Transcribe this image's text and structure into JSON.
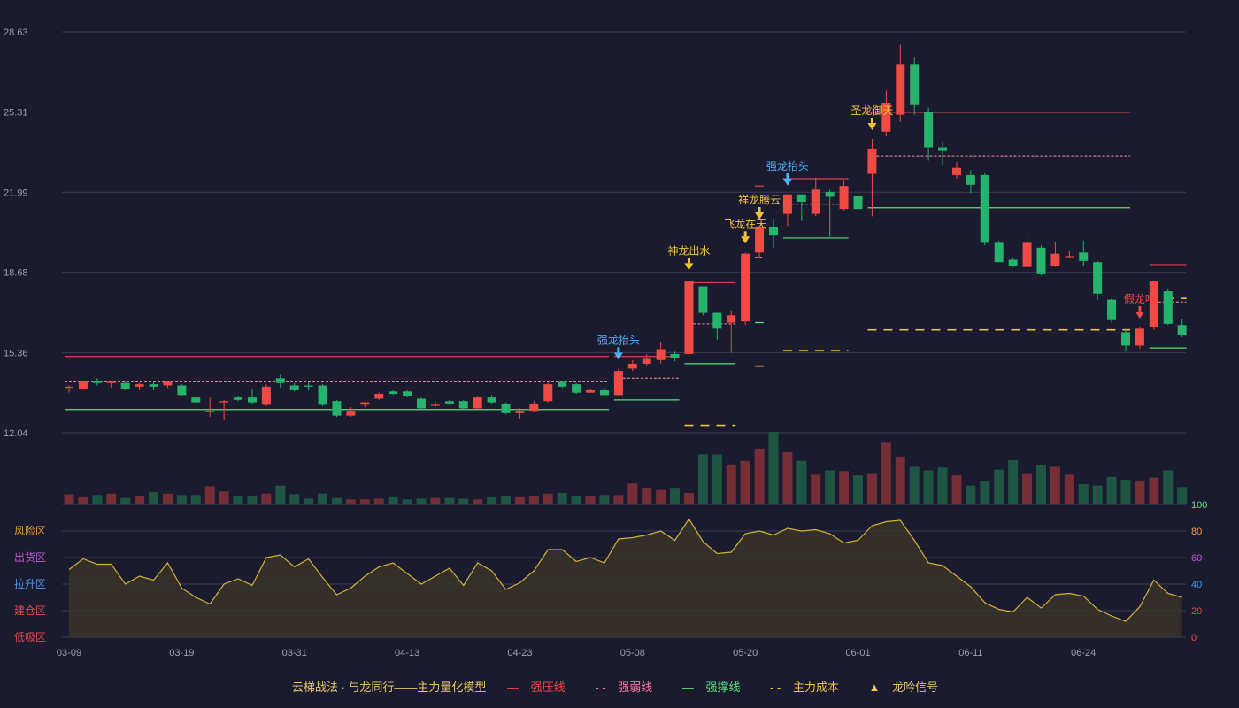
{
  "colors": {
    "up": "#ef4a43",
    "down": "#26b36b",
    "resist": "#d9434a",
    "weak": "#ff8fa8",
    "support": "#58e07a",
    "cost": "#f0c23a",
    "osc": "#d4b13a",
    "grid": "#3a3c50",
    "axis": "#9aa0b0",
    "bg": "#1a1b2e"
  },
  "legend": {
    "model": "云梯战法 · 与龙同行——主力量化模型",
    "resist": "强压线",
    "weak": "强弱线",
    "support": "强撑线",
    "cost": "主力成本",
    "signal": "龙吟信号"
  },
  "chart_data": {
    "type": "candlestick",
    "price_axis": {
      "ticks": [
        "28.63",
        "25.31",
        "21.99",
        "18.68",
        "15.36",
        "12.04"
      ],
      "range": [
        12.04,
        28.63
      ]
    },
    "osc_axis": {
      "ticks": [
        "100",
        "80",
        "60",
        "40",
        "20",
        "0"
      ],
      "range": [
        0,
        100
      ]
    },
    "zone_labels": [
      "风险区",
      "出货区",
      "拉升区",
      "建仓区",
      "低吸区"
    ],
    "x_ticks": [
      {
        "i": 0,
        "label": "03-09"
      },
      {
        "i": 8,
        "label": "03-19"
      },
      {
        "i": 16,
        "label": "03-31"
      },
      {
        "i": 24,
        "label": "04-13"
      },
      {
        "i": 32,
        "label": "04-23"
      },
      {
        "i": 40,
        "label": "05-08"
      },
      {
        "i": 48,
        "label": "05-20"
      },
      {
        "i": 56,
        "label": "06-01"
      },
      {
        "i": 64,
        "label": "06-11"
      },
      {
        "i": 72,
        "label": "06-24"
      }
    ],
    "ohlc": [
      [
        13.9,
        13.95,
        13.7,
        14.0
      ],
      [
        13.85,
        14.2,
        13.85,
        14.2
      ],
      [
        14.2,
        14.1,
        14.0,
        14.3
      ],
      [
        14.1,
        14.15,
        13.9,
        14.2
      ],
      [
        14.1,
        13.85,
        13.8,
        14.15
      ],
      [
        13.95,
        14.05,
        13.8,
        14.1
      ],
      [
        14.05,
        13.95,
        13.8,
        14.2
      ],
      [
        14.0,
        14.15,
        13.9,
        14.2
      ],
      [
        14.0,
        13.6,
        13.55,
        14.05
      ],
      [
        13.5,
        13.3,
        13.2,
        13.55
      ],
      [
        12.9,
        12.95,
        12.7,
        13.5
      ],
      [
        13.3,
        13.35,
        12.55,
        13.4
      ],
      [
        13.5,
        13.4,
        13.35,
        13.55
      ],
      [
        13.5,
        13.3,
        13.25,
        13.85
      ],
      [
        13.2,
        13.95,
        13.15,
        14.05
      ],
      [
        14.3,
        14.1,
        13.9,
        14.45
      ],
      [
        14.0,
        13.8,
        13.75,
        14.1
      ],
      [
        14.0,
        13.95,
        13.8,
        14.15
      ],
      [
        14.0,
        13.2,
        13.15,
        14.05
      ],
      [
        13.35,
        12.75,
        12.7,
        13.4
      ],
      [
        12.75,
        12.95,
        12.7,
        13.1
      ],
      [
        13.2,
        13.3,
        13.1,
        13.3
      ],
      [
        13.45,
        13.65,
        13.4,
        13.7
      ],
      [
        13.75,
        13.65,
        13.6,
        13.8
      ],
      [
        13.75,
        13.55,
        13.5,
        13.8
      ],
      [
        13.45,
        13.05,
        13.0,
        13.5
      ],
      [
        13.2,
        13.2,
        13.1,
        13.35
      ],
      [
        13.35,
        13.25,
        13.2,
        13.4
      ],
      [
        13.35,
        13.05,
        13.0,
        13.4
      ],
      [
        13.05,
        13.5,
        13.05,
        13.55
      ],
      [
        13.5,
        13.3,
        13.25,
        13.6
      ],
      [
        13.25,
        12.85,
        12.8,
        13.3
      ],
      [
        12.85,
        12.95,
        12.6,
        13.05
      ],
      [
        12.95,
        13.25,
        12.9,
        13.35
      ],
      [
        13.35,
        14.05,
        13.3,
        14.1
      ],
      [
        14.15,
        13.95,
        13.9,
        14.2
      ],
      [
        14.05,
        13.7,
        13.65,
        14.1
      ],
      [
        13.7,
        13.8,
        13.7,
        13.85
      ],
      [
        13.8,
        13.6,
        13.55,
        13.9
      ],
      [
        13.6,
        14.6,
        13.6,
        14.7
      ],
      [
        14.7,
        14.9,
        14.6,
        15.05
      ],
      [
        14.9,
        15.1,
        14.8,
        15.3
      ],
      [
        15.05,
        15.5,
        14.9,
        15.8
      ],
      [
        15.3,
        15.15,
        15.0,
        15.4
      ],
      [
        15.3,
        18.3,
        15.2,
        18.4
      ],
      [
        18.1,
        17.0,
        16.9,
        18.1
      ],
      [
        17.0,
        16.35,
        15.9,
        17.0
      ],
      [
        16.6,
        16.9,
        15.35,
        17.1
      ],
      [
        16.65,
        19.45,
        16.5,
        19.5
      ],
      [
        19.5,
        20.55,
        19.3,
        20.5
      ],
      [
        20.55,
        20.2,
        19.7,
        20.9
      ],
      [
        21.1,
        21.9,
        20.6,
        21.9
      ],
      [
        21.9,
        21.6,
        20.8,
        21.85
      ],
      [
        21.1,
        22.1,
        21.0,
        22.6
      ],
      [
        22.0,
        21.8,
        20.15,
        22.1
      ],
      [
        21.3,
        22.25,
        21.25,
        22.5
      ],
      [
        21.85,
        21.3,
        21.2,
        22.1
      ],
      [
        22.75,
        23.8,
        21.0,
        24.2
      ],
      [
        24.5,
        25.7,
        24.3,
        26.2
      ],
      [
        25.2,
        27.3,
        24.9,
        28.1
      ],
      [
        27.3,
        25.6,
        25.2,
        27.6
      ],
      [
        25.3,
        23.85,
        23.3,
        25.5
      ],
      [
        23.85,
        23.7,
        23.1,
        24.1
      ],
      [
        22.7,
        23.0,
        22.55,
        23.25
      ],
      [
        22.7,
        22.3,
        21.95,
        22.9
      ],
      [
        22.7,
        19.9,
        19.8,
        22.8
      ],
      [
        19.9,
        19.1,
        19.1,
        20.0
      ],
      [
        19.2,
        18.95,
        18.9,
        19.3
      ],
      [
        18.9,
        19.9,
        18.65,
        20.5
      ],
      [
        19.7,
        18.6,
        18.55,
        19.8
      ],
      [
        18.95,
        19.45,
        18.9,
        19.95
      ],
      [
        19.35,
        19.35,
        19.3,
        19.55
      ],
      [
        19.5,
        19.15,
        18.95,
        20.0
      ],
      [
        19.1,
        17.8,
        17.55,
        19.15
      ],
      [
        17.55,
        16.7,
        16.6,
        17.6
      ],
      [
        16.2,
        15.65,
        15.4,
        16.35
      ],
      [
        15.65,
        16.35,
        15.5,
        16.4
      ],
      [
        16.4,
        18.3,
        16.3,
        18.35
      ],
      [
        17.9,
        16.55,
        16.5,
        18.0
      ],
      [
        16.5,
        16.1,
        16.0,
        16.75
      ]
    ],
    "volume_rel": [
      0.14,
      0.1,
      0.13,
      0.15,
      0.09,
      0.12,
      0.17,
      0.15,
      0.13,
      0.13,
      0.25,
      0.18,
      0.12,
      0.11,
      0.15,
      0.26,
      0.14,
      0.08,
      0.15,
      0.09,
      0.07,
      0.07,
      0.08,
      0.1,
      0.07,
      0.08,
      0.09,
      0.09,
      0.08,
      0.07,
      0.1,
      0.12,
      0.1,
      0.12,
      0.15,
      0.16,
      0.11,
      0.12,
      0.13,
      0.13,
      0.29,
      0.23,
      0.2,
      0.23,
      0.16,
      0.69,
      0.69,
      0.55,
      0.6,
      0.77,
      1.0,
      0.72,
      0.6,
      0.41,
      0.47,
      0.46,
      0.4,
      0.42,
      0.86,
      0.66,
      0.52,
      0.47,
      0.51,
      0.4,
      0.26,
      0.32,
      0.48,
      0.61,
      0.42,
      0.55,
      0.52,
      0.41,
      0.28,
      0.26,
      0.38,
      0.34,
      0.33,
      0.37,
      0.47,
      0.24
    ],
    "oscillator": [
      51,
      59,
      55,
      55,
      40,
      46,
      43,
      56,
      37,
      30,
      25,
      40,
      44,
      39,
      60,
      62,
      53,
      59,
      45,
      32,
      37,
      46,
      53,
      56,
      48,
      40,
      46,
      52,
      39,
      56,
      50,
      36,
      41,
      50,
      66,
      66,
      57,
      60,
      56,
      74,
      75,
      77,
      80,
      73,
      89,
      72,
      63,
      64,
      78,
      80,
      77,
      82,
      80,
      81,
      78,
      71,
      73,
      84,
      87,
      88,
      73,
      56,
      54,
      46,
      38,
      26,
      21,
      19,
      30,
      22,
      32,
      33,
      31,
      21,
      16,
      12,
      23,
      43,
      33,
      30
    ],
    "signals": [
      {
        "i": 39,
        "label": "强龙抬头",
        "color": "#4db3ff"
      },
      {
        "i": 44,
        "label": "神龙出水",
        "color": "#f0c23a"
      },
      {
        "i": 48,
        "label": "飞龙在天",
        "color": "#f0c23a"
      },
      {
        "i": 49,
        "label": "祥龙腾云",
        "color": "#f0c23a"
      },
      {
        "i": 51,
        "label": "强龙抬头",
        "color": "#4db3ff"
      },
      {
        "i": 57,
        "label": "圣龙御天",
        "color": "#f0c23a"
      },
      {
        "i": 76,
        "label": "假龙吟",
        "color": "#ef4a43"
      }
    ],
    "resist_lines": [
      {
        "from": 0,
        "to": 38,
        "value": 15.2
      },
      {
        "from": 39,
        "to": 43,
        "value": 15.2
      },
      {
        "from": 44,
        "to": 47,
        "value": 18.25
      },
      {
        "from": 49,
        "to": 49,
        "value": 22.25
      },
      {
        "from": 51,
        "to": 55,
        "value": 22.55
      },
      {
        "from": 57,
        "to": 75,
        "value": 25.3
      },
      {
        "from": 77,
        "to": 79,
        "value": 19.0
      }
    ],
    "weak_lines": [
      {
        "from": 0,
        "to": 38,
        "value": 14.15
      },
      {
        "from": 39,
        "to": 43,
        "value": 14.3
      },
      {
        "from": 44,
        "to": 47,
        "value": 16.55
      },
      {
        "from": 49,
        "to": 49,
        "value": 19.3
      },
      {
        "from": 51,
        "to": 55,
        "value": 21.5
      },
      {
        "from": 57,
        "to": 75,
        "value": 23.5
      },
      {
        "from": 77,
        "to": 79,
        "value": 17.45
      }
    ],
    "support_lines": [
      {
        "from": 0,
        "to": 38,
        "value": 13.0
      },
      {
        "from": 39,
        "to": 43,
        "value": 13.4
      },
      {
        "from": 44,
        "to": 47,
        "value": 14.9
      },
      {
        "from": 49,
        "to": 49,
        "value": 16.6
      },
      {
        "from": 51,
        "to": 55,
        "value": 20.1
      },
      {
        "from": 57,
        "to": 75,
        "value": 21.35
      },
      {
        "from": 77,
        "to": 79,
        "value": 15.55
      }
    ],
    "cost_lines": [
      {
        "from": 44,
        "to": 47,
        "value": 12.35
      },
      {
        "from": 49,
        "to": 49,
        "value": 14.8
      },
      {
        "from": 51,
        "to": 55,
        "value": 15.45
      },
      {
        "from": 57,
        "to": 75,
        "value": 16.3
      },
      {
        "from": 77,
        "to": 79,
        "value": 17.6
      }
    ]
  }
}
